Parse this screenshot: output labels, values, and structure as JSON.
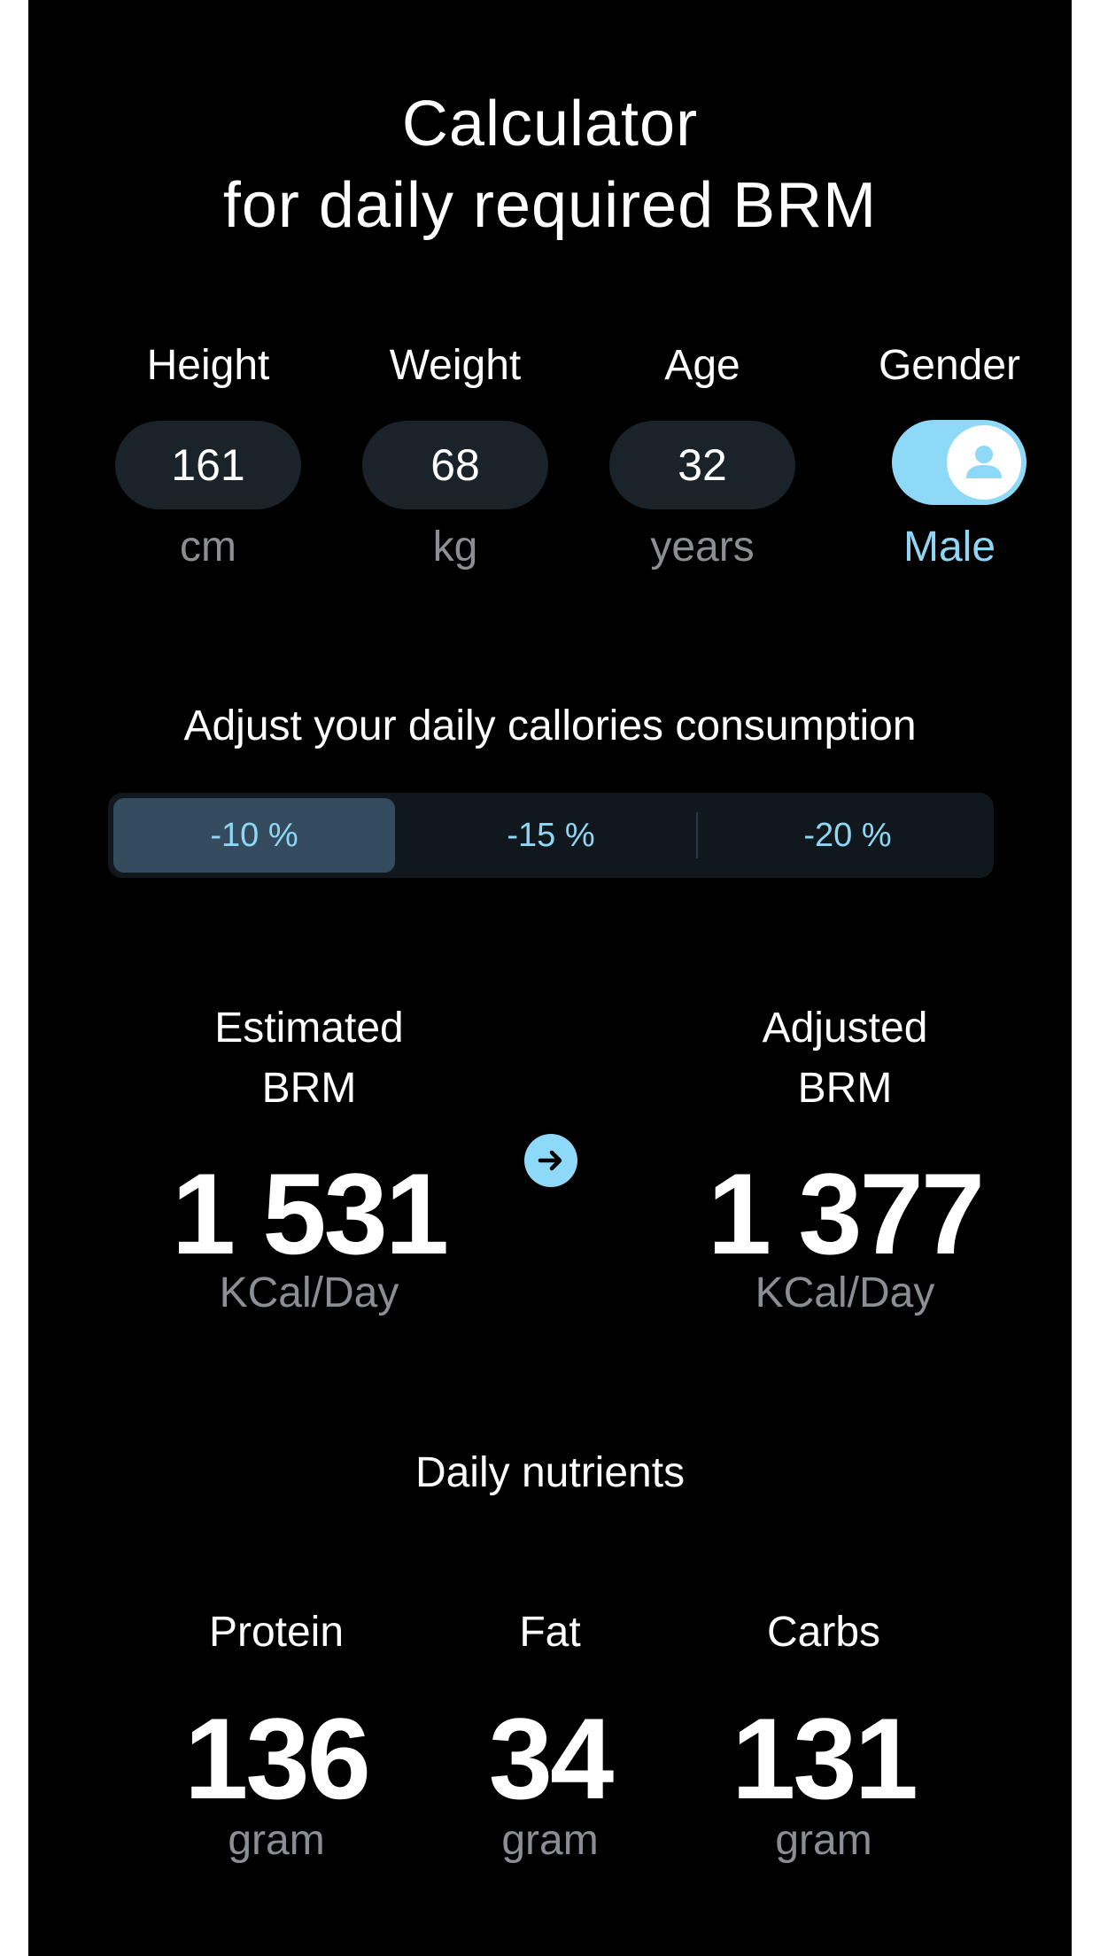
{
  "header": {
    "title_line1": "Calculator",
    "title_line2": "for daily required BRM"
  },
  "inputs": {
    "height": {
      "label": "Height",
      "value": "161",
      "unit": "cm"
    },
    "weight": {
      "label": "Weight",
      "value": "68",
      "unit": "kg"
    },
    "age": {
      "label": "Age",
      "value": "32",
      "unit": "years"
    },
    "gender": {
      "label": "Gender",
      "value": "Male",
      "toggle_on": true,
      "icon": "person-icon"
    }
  },
  "adjust": {
    "heading": "Adjust your daily callories consumption",
    "options": [
      "-10 %",
      "-15 %",
      "-20 %"
    ],
    "selected": "-10 %"
  },
  "brm": {
    "estimated": {
      "label_line1": "Estimated",
      "label_line2": "BRM",
      "value": "1 531",
      "unit": "KCal/Day"
    },
    "adjusted": {
      "label_line1": "Adjusted",
      "label_line2": "BRM",
      "value": "1 377",
      "unit": "KCal/Day"
    },
    "arrow_icon": "arrow-right-icon"
  },
  "nutrients": {
    "heading": "Daily nutrients",
    "items": [
      {
        "label": "Protein",
        "value": "136",
        "unit": "gram"
      },
      {
        "label": "Fat",
        "value": "34",
        "unit": "gram"
      },
      {
        "label": "Carbs",
        "value": "131",
        "unit": "gram"
      }
    ]
  },
  "colors": {
    "background": "#000000",
    "accent": "#8fd9f8",
    "pill": "#1a2329",
    "muted_text": "#8b8f94",
    "segment_active": "#334b5c"
  }
}
